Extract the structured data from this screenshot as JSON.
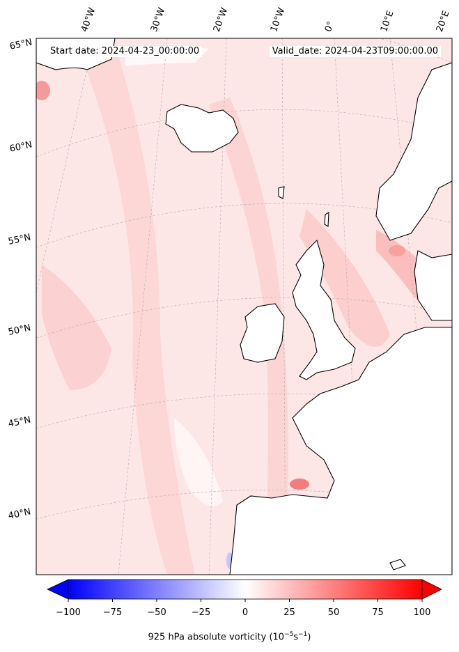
{
  "header": {
    "start_date": "Start date: 2024-04-23_00:00:00",
    "valid_date": "Valid_date: 2024-04-23T09:00:00.00"
  },
  "longitude_labels": [
    "40°W",
    "30°W",
    "20°W",
    "10°W",
    "0°",
    "10°E",
    "20°E"
  ],
  "latitude_labels": [
    "65°N",
    "60°N",
    "55°N",
    "50°N",
    "45°N",
    "40°N"
  ],
  "colorbar": {
    "ticks": [
      "−100",
      "−75",
      "−50",
      "−25",
      "0",
      "25",
      "50",
      "75",
      "100"
    ],
    "title_text": "925 hPa absolute vorticity (10",
    "title_sup1": "−5",
    "title_mid": "s",
    "title_sup2": "−1",
    "title_end": ")",
    "colors": {
      "neg": "#0000ff",
      "zero": "#ffffff",
      "pos": "#ff0000"
    }
  }
}
